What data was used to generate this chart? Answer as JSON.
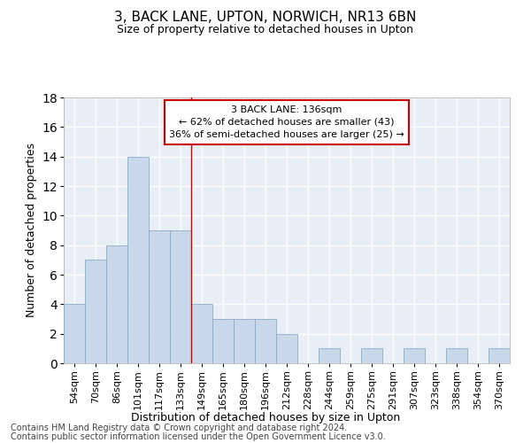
{
  "title": "3, BACK LANE, UPTON, NORWICH, NR13 6BN",
  "subtitle": "Size of property relative to detached houses in Upton",
  "xlabel": "Distribution of detached houses by size in Upton",
  "ylabel": "Number of detached properties",
  "bar_color": "#c8d8ea",
  "bar_edge_color": "#8baac8",
  "background_color": "#e8eef5",
  "grid_color": "white",
  "categories": [
    "54sqm",
    "70sqm",
    "86sqm",
    "101sqm",
    "117sqm",
    "133sqm",
    "149sqm",
    "165sqm",
    "180sqm",
    "196sqm",
    "212sqm",
    "228sqm",
    "244sqm",
    "259sqm",
    "275sqm",
    "291sqm",
    "307sqm",
    "323sqm",
    "338sqm",
    "354sqm",
    "370sqm"
  ],
  "values": [
    4,
    7,
    8,
    14,
    9,
    9,
    4,
    3,
    3,
    3,
    2,
    0,
    1,
    0,
    1,
    0,
    1,
    0,
    1,
    0,
    1
  ],
  "ylim": [
    0,
    18
  ],
  "yticks": [
    0,
    2,
    4,
    6,
    8,
    10,
    12,
    14,
    16,
    18
  ],
  "red_line_x": 5.5,
  "annotation_line1": "3 BACK LANE: 136sqm",
  "annotation_line2": "← 62% of detached houses are smaller (43)",
  "annotation_line3": "36% of semi-detached houses are larger (25) →",
  "annotation_box_color": "white",
  "annotation_box_edge": "#cc0000",
  "footer_line1": "Contains HM Land Registry data © Crown copyright and database right 2024.",
  "footer_line2": "Contains public sector information licensed under the Open Government Licence v3.0.",
  "title_fontsize": 11,
  "subtitle_fontsize": 9,
  "ylabel_fontsize": 9,
  "xlabel_fontsize": 9,
  "tick_fontsize": 8,
  "footer_fontsize": 7
}
